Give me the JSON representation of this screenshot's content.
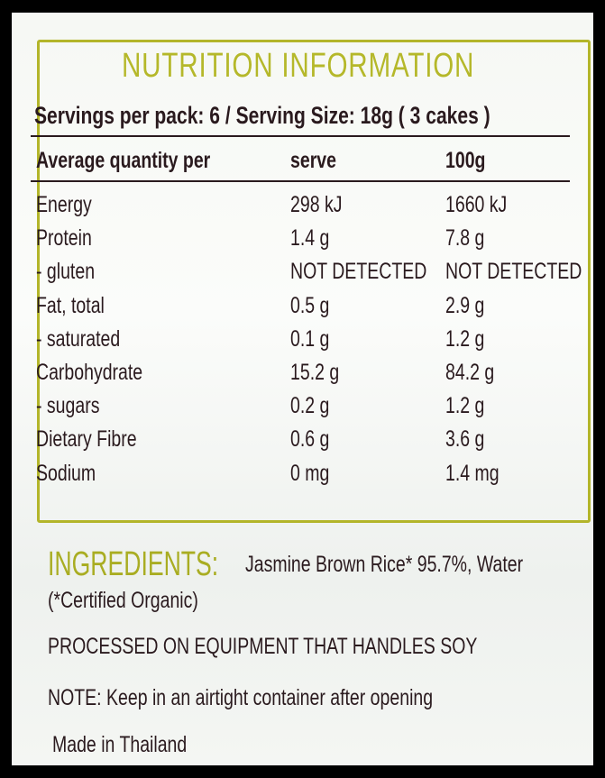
{
  "title": "NUTRITION INFORMATION",
  "serving_info": "Servings per pack: 6 / Serving Size: 18g ( 3 cakes )",
  "table": {
    "headers": [
      "Average quantity per",
      "serve",
      "100g"
    ],
    "rows": [
      [
        "Energy",
        "298 kJ",
        "1660 kJ"
      ],
      [
        "Protein",
        "1.4 g",
        "7.8 g"
      ],
      [
        "- gluten",
        "NOT DETECTED",
        "NOT DETECTED"
      ],
      [
        "Fat, total",
        "0.5 g",
        "2.9 g"
      ],
      [
        " - saturated",
        "0.1 g",
        "1.2 g"
      ],
      [
        "Carbohydrate",
        "15.2 g",
        "84.2 g"
      ],
      [
        " - sugars",
        "0.2 g",
        "1.2 g"
      ],
      [
        "Dietary Fibre",
        "0.6 g",
        "3.6 g"
      ],
      [
        "Sodium",
        "0 mg",
        "1.4 mg"
      ]
    ]
  },
  "ingredients": {
    "label": "INGREDIENTS:",
    "text": "Jasmine Brown Rice* 95.7%, Water",
    "footnote": "(*Certified Organic)"
  },
  "allergen": "PROCESSED ON EQUIPMENT THAT HANDLES SOY",
  "note": "NOTE: Keep in an airtight container after opening",
  "origin": "Made in Thailand",
  "colors": {
    "accent": "#b5b82a",
    "text": "#2a1a1e",
    "background": "#f6f8f4"
  }
}
